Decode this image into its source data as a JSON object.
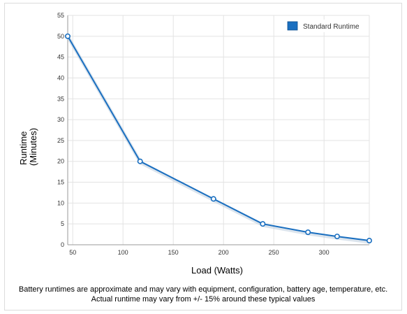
{
  "chart_data": {
    "type": "line",
    "title": "",
    "xlabel": "Load (Watts)",
    "ylabel_lines": [
      "Runtime",
      "(Minutes)"
    ],
    "xlim": [
      45,
      345
    ],
    "ylim": [
      0,
      55
    ],
    "xticks": [
      50,
      100,
      150,
      200,
      250,
      300
    ],
    "yticks": [
      0,
      5,
      10,
      15,
      20,
      25,
      30,
      35,
      40,
      45,
      50,
      55
    ],
    "grid": true,
    "legend_position": "top-right",
    "series": [
      {
        "name": "Standard Runtime",
        "color": "#1a6fc0",
        "x": [
          45,
          117,
          190,
          239,
          284,
          313,
          345
        ],
        "y": [
          50,
          20,
          11,
          5,
          3,
          2,
          1
        ]
      }
    ]
  },
  "notes": {
    "line1": "Battery runtimes are approximate and may vary with equipment, configuration, battery age, temperature, etc.",
    "line2": "Actual runtime may vary from +/- 15% around these typical values"
  }
}
